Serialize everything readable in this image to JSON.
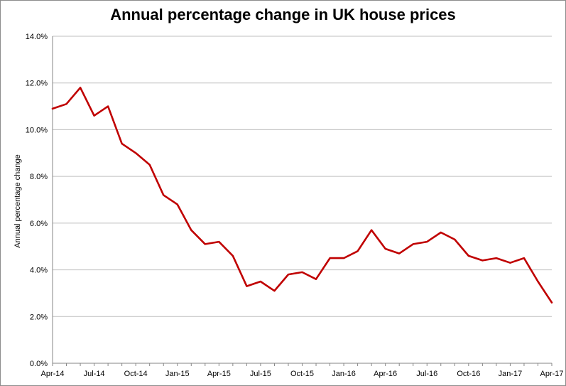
{
  "chart_data": {
    "type": "line",
    "title": "Annual percentage change in UK house prices",
    "xlabel": "",
    "ylabel": "Annual percentage change",
    "ylim": [
      0,
      14
    ],
    "y_ticks": [
      "0.0%",
      "2.0%",
      "4.0%",
      "6.0%",
      "8.0%",
      "10.0%",
      "12.0%",
      "14.0%"
    ],
    "y_tick_values": [
      0,
      2,
      4,
      6,
      8,
      10,
      12,
      14
    ],
    "x_ticks": [
      {
        "label": "Apr-14",
        "index": 0
      },
      {
        "label": "Jul-14",
        "index": 3
      },
      {
        "label": "Oct-14",
        "index": 6
      },
      {
        "label": "Jan-15",
        "index": 9
      },
      {
        "label": "Apr-15",
        "index": 12
      },
      {
        "label": "Jul-15",
        "index": 15
      },
      {
        "label": "Oct-15",
        "index": 18
      },
      {
        "label": "Jan-16",
        "index": 21
      },
      {
        "label": "Apr-16",
        "index": 24
      },
      {
        "label": "Jul-16",
        "index": 27
      },
      {
        "label": "Oct-16",
        "index": 30
      },
      {
        "label": "Jan-17",
        "index": 33
      },
      {
        "label": "Apr-17",
        "index": 36
      }
    ],
    "grid": true,
    "legend": "none",
    "series": [
      {
        "color": "#c00000",
        "x": [
          "Apr-14",
          "May-14",
          "Jun-14",
          "Jul-14",
          "Aug-14",
          "Sep-14",
          "Oct-14",
          "Nov-14",
          "Dec-14",
          "Jan-15",
          "Feb-15",
          "Mar-15",
          "Apr-15",
          "May-15",
          "Jun-15",
          "Jul-15",
          "Aug-15",
          "Sep-15",
          "Oct-15",
          "Nov-15",
          "Dec-15",
          "Jan-16",
          "Feb-16",
          "Mar-16",
          "Apr-16",
          "May-16",
          "Jun-16",
          "Jul-16",
          "Aug-16",
          "Sep-16",
          "Oct-16",
          "Nov-16",
          "Dec-16",
          "Jan-17",
          "Feb-17",
          "Mar-17",
          "Apr-17"
        ],
        "values": [
          10.9,
          11.1,
          11.8,
          10.6,
          11.0,
          9.4,
          9.0,
          8.5,
          7.2,
          6.8,
          5.7,
          5.1,
          5.2,
          4.6,
          3.3,
          3.5,
          3.1,
          3.8,
          3.9,
          3.6,
          4.5,
          4.5,
          4.8,
          5.7,
          4.9,
          4.7,
          5.1,
          5.2,
          5.6,
          5.3,
          4.6,
          4.4,
          4.5,
          4.3,
          4.5,
          3.5,
          2.6
        ]
      }
    ]
  }
}
